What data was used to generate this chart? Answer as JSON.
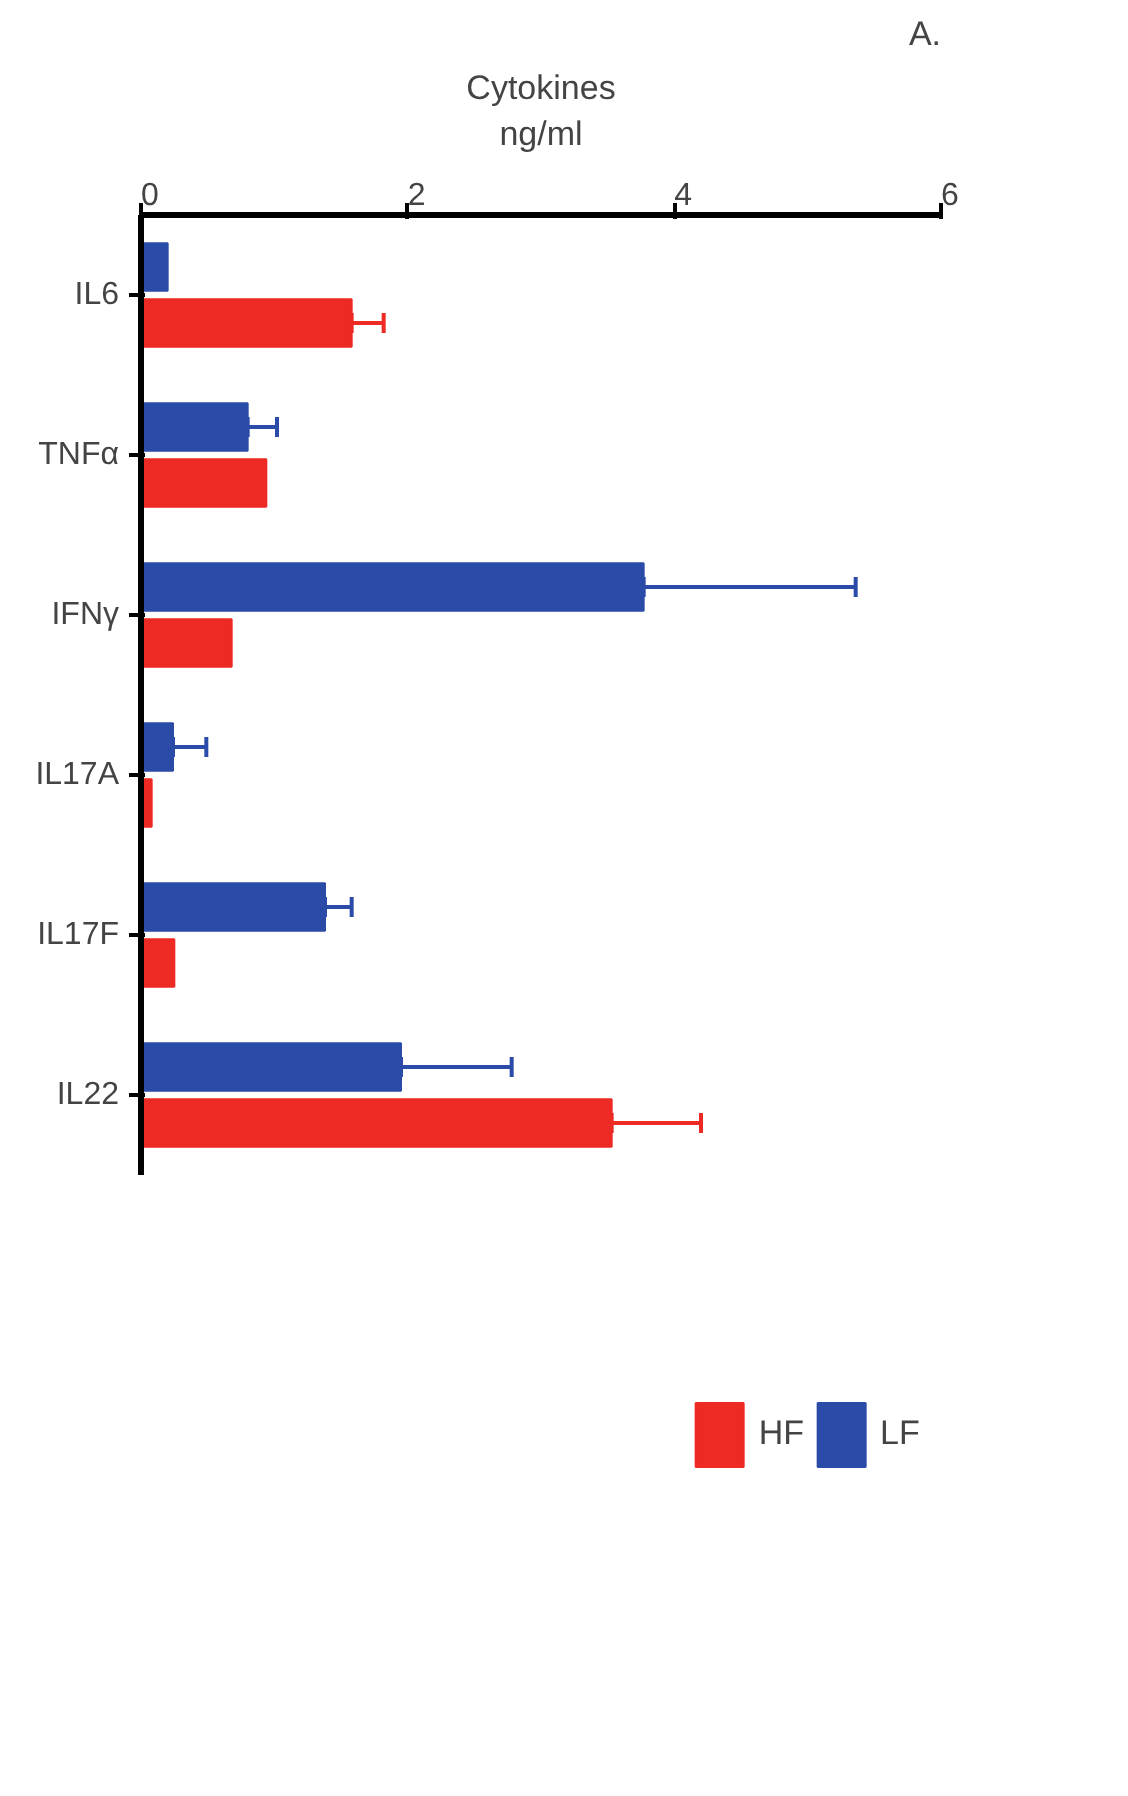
{
  "chart_data": {
    "type": "bar",
    "orientation": "horizontal",
    "xlabel": "Cytokines\nng/ml",
    "categories": [
      "IL6",
      "TNFα",
      "IFNγ",
      "IL17A",
      "IL17F",
      "IL22"
    ],
    "series": [
      {
        "name": "LF",
        "color": "#2b4ba8",
        "values": [
          0.2,
          0.8,
          3.77,
          0.24,
          1.38,
          1.95
        ],
        "errors": [
          null,
          [
            0.8,
            1.02
          ],
          [
            3.77,
            5.36
          ],
          [
            0.24,
            0.49
          ],
          [
            1.38,
            1.58
          ],
          [
            1.95,
            2.78
          ]
        ]
      },
      {
        "name": "HF",
        "color": "#ee2a24",
        "values": [
          1.58,
          0.94,
          0.68,
          0.08,
          0.25,
          3.53
        ],
        "errors": [
          [
            1.58,
            1.82
          ],
          null,
          null,
          null,
          null,
          [
            3.53,
            4.2
          ]
        ]
      }
    ],
    "xlim": [
      0,
      6
    ],
    "xticks": [
      0,
      2,
      4,
      6
    ],
    "grid": false,
    "legend": "bottom right",
    "annotations": [
      "A."
    ]
  }
}
